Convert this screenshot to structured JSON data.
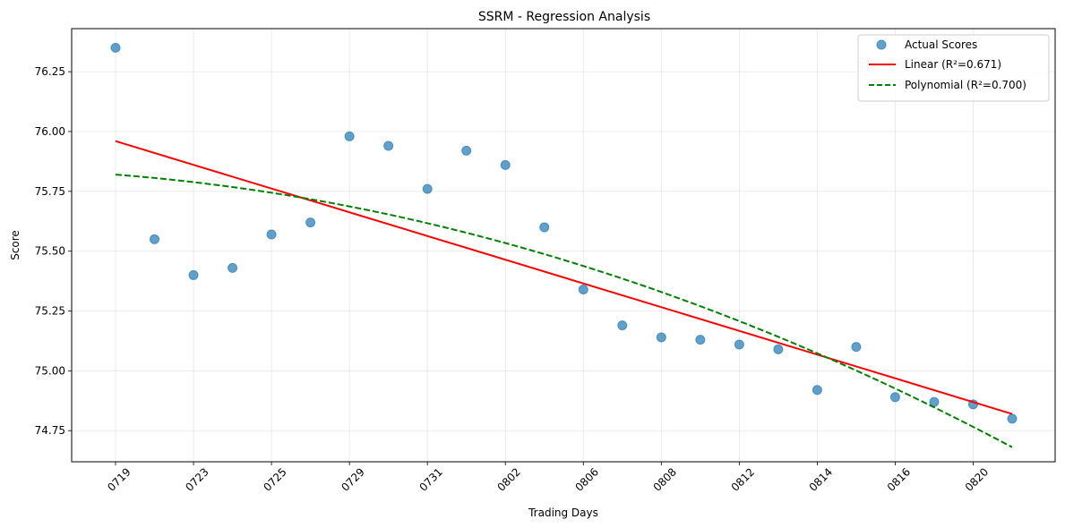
{
  "chart_data": {
    "type": "scatter",
    "title": "SSRM - Regression Analysis",
    "xlabel": "Trading Days",
    "ylabel": "Score",
    "x_count": 24,
    "x_tick_labels": [
      "0719",
      "0723",
      "0725",
      "0729",
      "0731",
      "0802",
      "0806",
      "0808",
      "0812",
      "0814",
      "0816",
      "0820"
    ],
    "x_tick_every": 2,
    "ylim": [
      74.62,
      76.43
    ],
    "y_ticks": [
      74.75,
      75.0,
      75.25,
      75.5,
      75.75,
      76.0,
      76.25
    ],
    "y_tick_labels": [
      "74.75",
      "75.00",
      "75.25",
      "75.50",
      "75.75",
      "76.00",
      "76.25"
    ],
    "grid": true,
    "legend_position": "top-right",
    "series": [
      {
        "name": "Actual Scores",
        "kind": "scatter",
        "color": "#1f77b4",
        "values": [
          76.35,
          75.55,
          75.4,
          75.43,
          75.57,
          75.62,
          75.98,
          75.94,
          75.76,
          75.92,
          75.86,
          75.6,
          75.34,
          75.19,
          75.14,
          75.13,
          75.11,
          75.09,
          74.92,
          75.1,
          74.89,
          74.87,
          74.86,
          74.8
        ]
      },
      {
        "name": "Linear (R²=0.671)",
        "kind": "line",
        "style": "solid",
        "color": "#ff0000",
        "endpoints": [
          75.96,
          74.82
        ]
      },
      {
        "name": "Polynomial (R²=0.700)",
        "kind": "line",
        "style": "dashed",
        "color": "#008000",
        "coefficients": [
          75.82,
          -0.0125,
          -0.00161
        ]
      }
    ]
  }
}
